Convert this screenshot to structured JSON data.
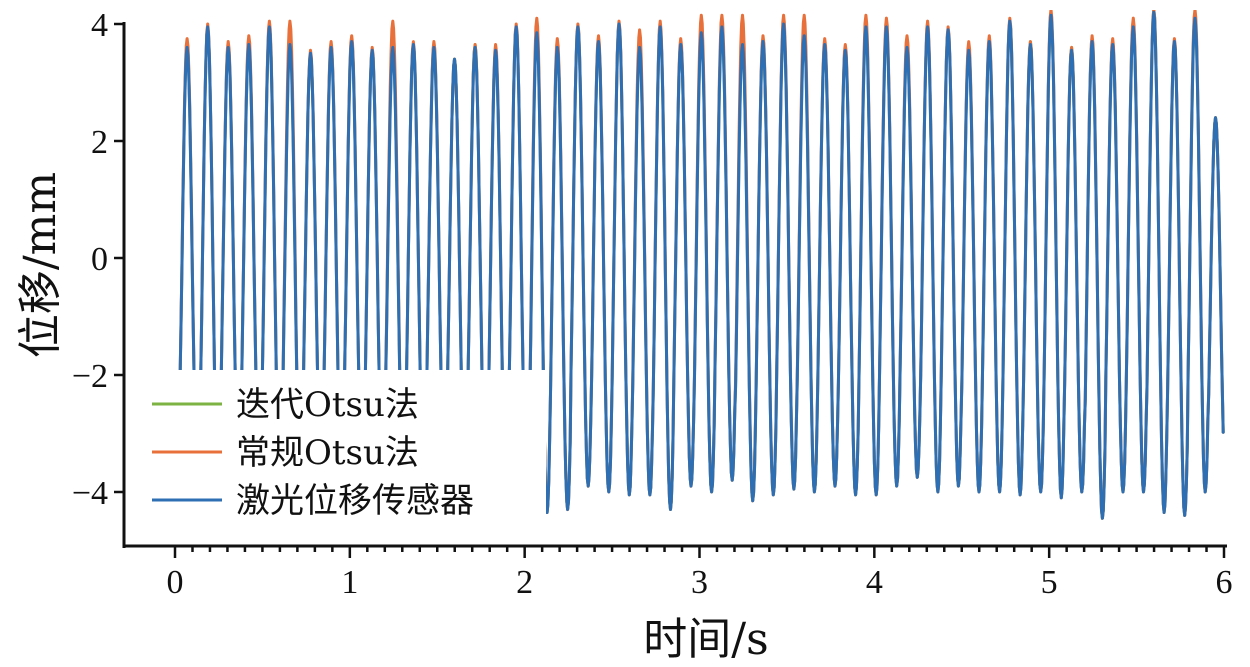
{
  "chart_data": {
    "type": "line",
    "xlabel": "时间/s",
    "ylabel": "位移/mm",
    "xlim": [
      -0.3,
      6
    ],
    "ylim": [
      -4.9,
      4
    ],
    "xticks": [
      0,
      1,
      2,
      3,
      4,
      5,
      6
    ],
    "yticks": [
      -4,
      -2,
      0,
      2,
      4
    ],
    "xtick_labels": [
      "0",
      "1",
      "2",
      "3",
      "4",
      "5",
      "6"
    ],
    "ytick_labels": [
      "−4",
      "−2",
      "0",
      "2",
      "4"
    ],
    "grid": false,
    "legend_position": "bottom-left",
    "signal": {
      "start_time": 0.03,
      "end_time": 6.0,
      "frequency_hz": 8.5,
      "amplitude_mm": 3.9,
      "offset_mm": -0.2,
      "peak_values_mm": [
        3.6,
        3.95,
        3.6,
        3.65,
        3.95,
        3.65,
        3.5,
        3.6,
        3.7,
        3.55,
        3.6,
        3.65,
        3.6,
        3.4,
        3.6,
        3.55,
        3.95,
        3.85,
        3.6,
        3.95,
        3.7,
        4.0,
        3.6,
        3.95,
        3.65,
        3.85,
        3.95,
        3.65,
        3.7,
        4.0,
        3.8,
        3.65,
        3.55,
        3.95,
        3.95,
        3.6,
        3.95,
        3.9,
        3.55,
        3.7,
        4.05,
        3.65,
        4.15,
        3.55,
        3.7,
        3.65,
        3.95,
        4.2,
        3.7,
        4.1,
        2.4
      ],
      "trough_values_mm": [
        -3.8,
        -3.9,
        -3.7,
        -3.6,
        -3.8,
        -3.9,
        -3.6,
        -3.7,
        -3.6,
        -3.8,
        -3.7,
        -3.9,
        -3.6,
        -3.8,
        -3.7,
        -4.05,
        -4.0,
        -4.35,
        -4.3,
        -3.9,
        -4.0,
        -4.05,
        -4.05,
        -4.3,
        -3.9,
        -4.0,
        -3.8,
        -4.15,
        -4.05,
        -3.95,
        -4.0,
        -3.9,
        -4.05,
        -4.05,
        -3.9,
        -3.75,
        -4.0,
        -3.9,
        -4.0,
        -4.0,
        -4.05,
        -4.0,
        -4.1,
        -4.0,
        -4.45,
        -4.0,
        -4.0,
        -4.35,
        -4.4,
        -4.0
      ]
    },
    "series": [
      {
        "name": "迭代Otsu法",
        "color": "#7cb342",
        "peak_offsets_mm": [
          0.05,
          0.0,
          0.05,
          0.0,
          0.0,
          0.05,
          0.0,
          0.05,
          0.05,
          0.0,
          0.05,
          0.0,
          0.05,
          0.0,
          0.05,
          0.0,
          0.0,
          0.05,
          0.0,
          0.0,
          0.05,
          0.0,
          0.05,
          0.0,
          0.0,
          0.05,
          0.0,
          0.05,
          0.0,
          0.0,
          0.05,
          0.0,
          0.05,
          0.0,
          0.0,
          0.05,
          0.0,
          0.0,
          0.05,
          0.0,
          0.0,
          0.05,
          0.0,
          0.05,
          0.0,
          0.0,
          0.05,
          0.05,
          0.0,
          0.0,
          0.0
        ]
      },
      {
        "name": "常规Otsu法",
        "color": "#e8703a",
        "peak_offsets_mm": [
          0.15,
          0.05,
          0.1,
          0.15,
          0.1,
          0.4,
          0.05,
          0.1,
          0.1,
          0.05,
          0.45,
          0.05,
          0.1,
          0.0,
          0.05,
          0.1,
          0.05,
          0.25,
          0.15,
          0.05,
          0.1,
          0.05,
          0.3,
          0.1,
          0.1,
          0.3,
          0.2,
          0.5,
          0.1,
          0.15,
          0.35,
          0.1,
          0.1,
          0.2,
          0.15,
          0.2,
          0.1,
          0.05,
          0.15,
          0.1,
          0.05,
          0.05,
          0.1,
          0.05,
          0.1,
          0.1,
          0.15,
          0.05,
          0.05,
          0.15,
          0.0
        ]
      },
      {
        "name": "激光位移传感器",
        "color": "#2e6fb4",
        "peak_offsets_mm": [
          0.0,
          0.0,
          0.0,
          0.0,
          0.0,
          0.0,
          0.0,
          0.0,
          0.0,
          0.0,
          0.0,
          0.0,
          0.0,
          0.0,
          0.0,
          0.0,
          0.0,
          0.0,
          0.0,
          0.0,
          0.0,
          0.0,
          0.0,
          0.0,
          0.0,
          0.0,
          0.0,
          0.0,
          0.0,
          0.0,
          0.0,
          0.0,
          0.0,
          0.0,
          0.0,
          0.0,
          0.0,
          0.0,
          0.0,
          0.0,
          0.0,
          0.0,
          0.0,
          0.0,
          0.0,
          0.0,
          0.0,
          0.0,
          0.0,
          0.0,
          0.0
        ]
      }
    ]
  }
}
